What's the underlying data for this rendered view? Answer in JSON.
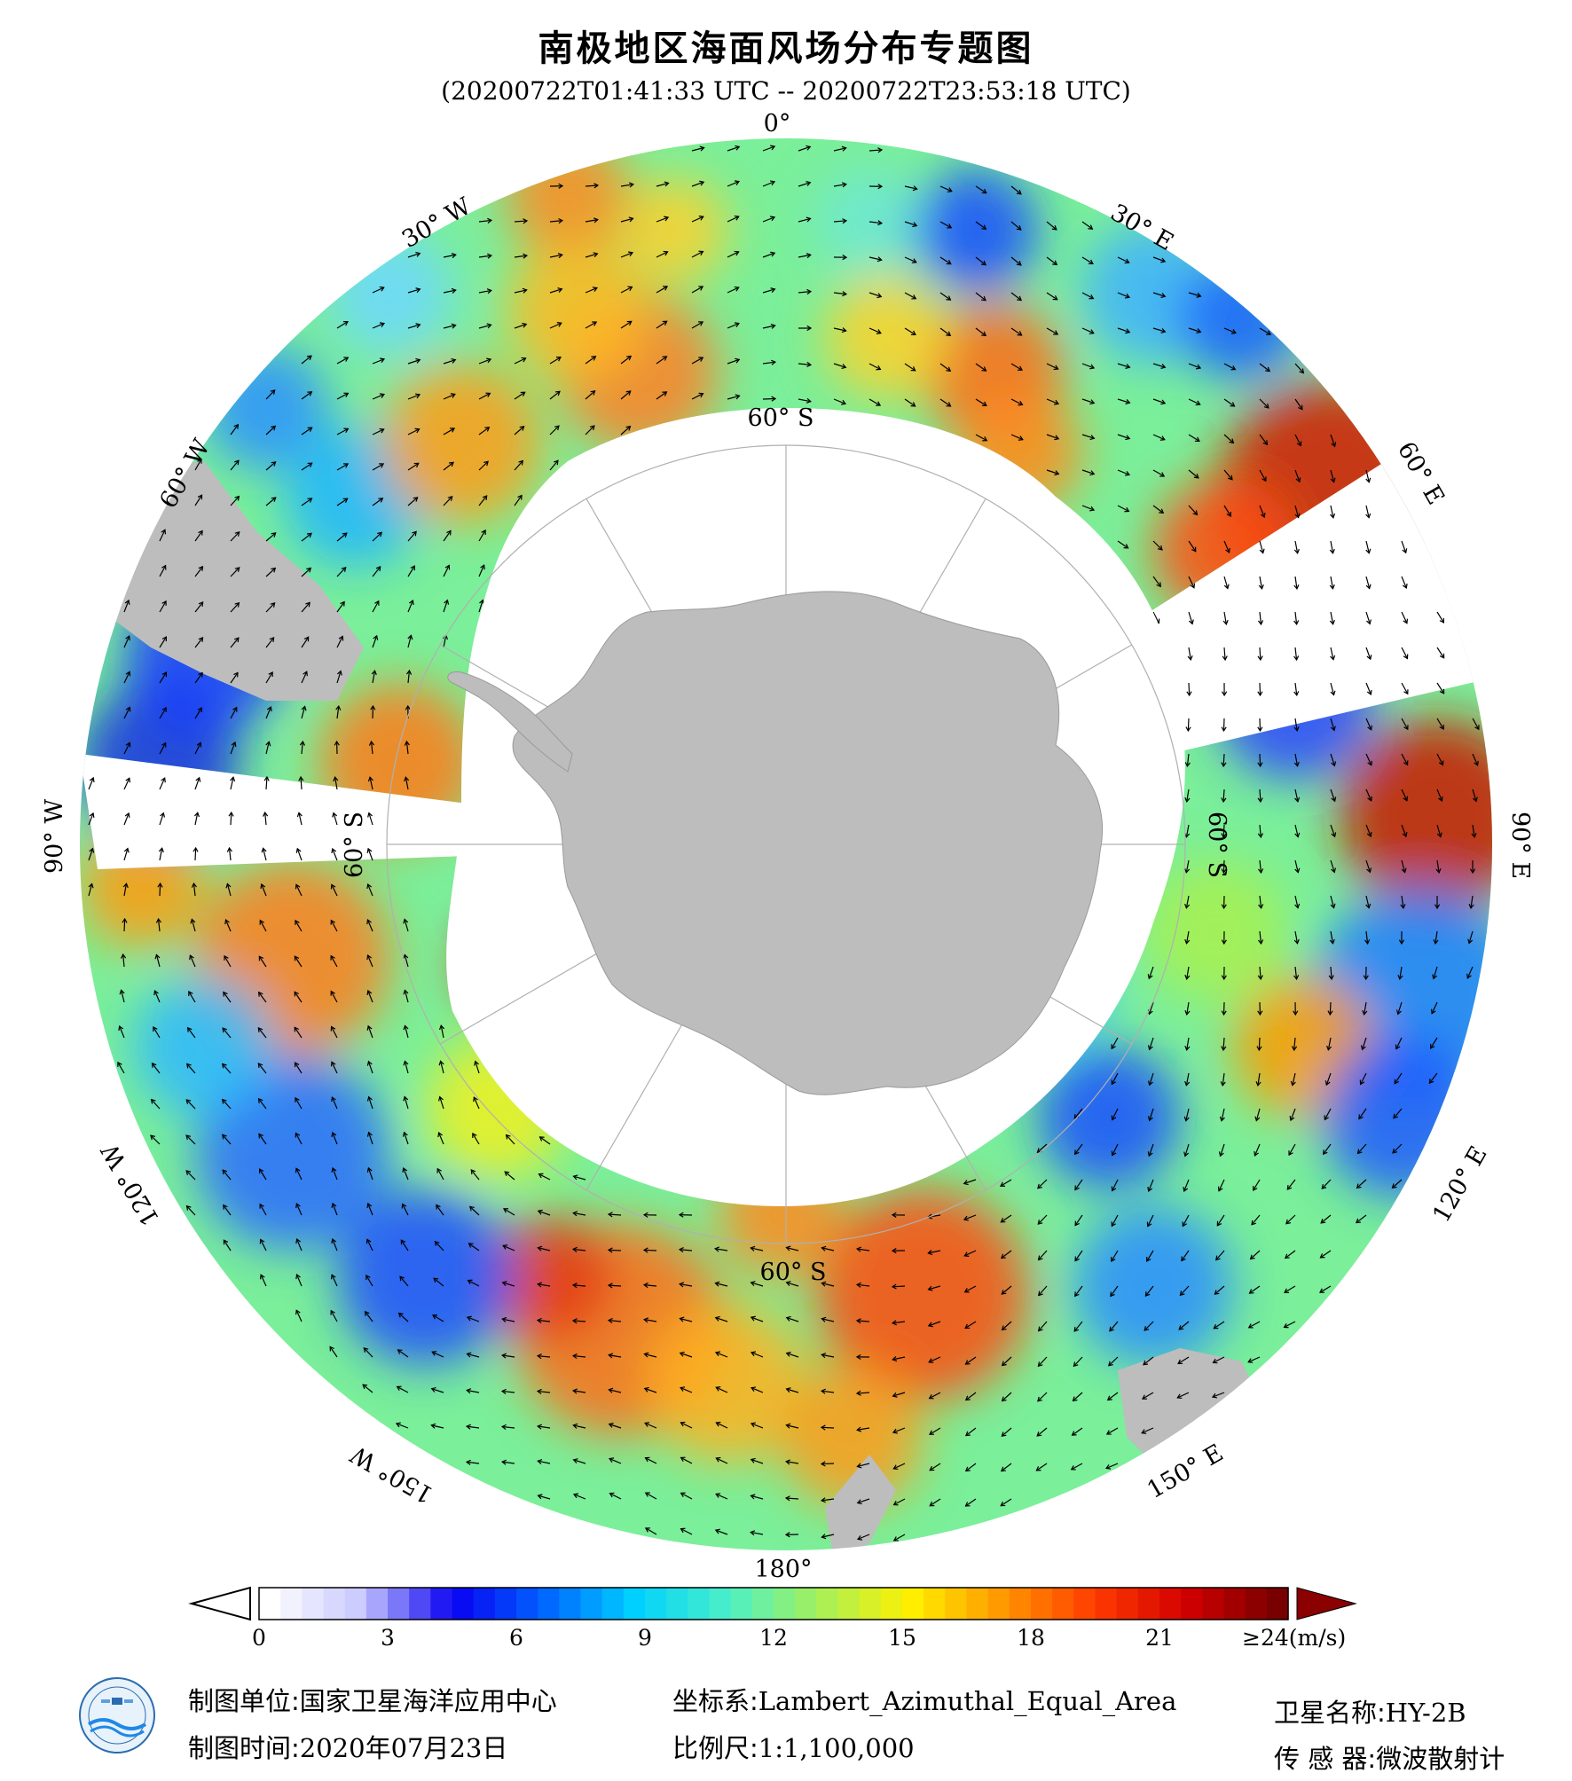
{
  "title": "南极地区海面风场分布专题图",
  "subtitle": "(20200722T01:41:33 UTC -- 20200722T23:53:18 UTC)",
  "longitude_labels": {
    "lon_0": "0°",
    "lon_30e": "30° E",
    "lon_60e": "60° E",
    "lon_90e": "90° E",
    "lon_120e": "120° E",
    "lon_150e": "150° E",
    "lon_180": "180°",
    "lon_150w": "150° W",
    "lon_120w": "120° W",
    "lon_90w": "90° W",
    "lon_60w": "60° W",
    "lon_30w": "30° W"
  },
  "latitude_labels": {
    "lat_top": "60° S",
    "lat_right": "60° S",
    "lat_bottom": "60° S",
    "lat_left": "60° S"
  },
  "colorbar": {
    "unit_label": "≥24(m/s)",
    "ticks": [
      "0",
      "3",
      "6",
      "9",
      "12",
      "15",
      "18",
      "21"
    ],
    "tick_values": [
      0,
      3,
      6,
      9,
      12,
      15,
      18,
      21
    ],
    "min": 0,
    "max": 24,
    "colors": [
      "#ffffff",
      "#c8c8ff",
      "#0a00f0",
      "#0064ff",
      "#00d2ff",
      "#4bf0c8",
      "#a6f05a",
      "#fff000",
      "#ff9600",
      "#ff3c00",
      "#d20000",
      "#780000"
    ]
  },
  "footer": {
    "org_label": "制图单位:",
    "org_value": "国家卫星海洋应用中心",
    "time_label": "制图时间:",
    "time_value": "2020年07月23日",
    "crs_label": "坐标系:",
    "crs_value": "Lambert_Azimuthal_Equal_Area",
    "scale_label": "比例尺:",
    "scale_value": "1:1,100,000",
    "sat_label": "卫星名称:",
    "sat_value": "HY-2B",
    "sensor_label": "传 感 器:",
    "sensor_value": "微波散射计"
  },
  "colors": {
    "land": "#bdbdbd",
    "ice": "#ffffff",
    "arrow": "#000000"
  },
  "icons": {
    "logo": "nsoas-logo-icon"
  }
}
